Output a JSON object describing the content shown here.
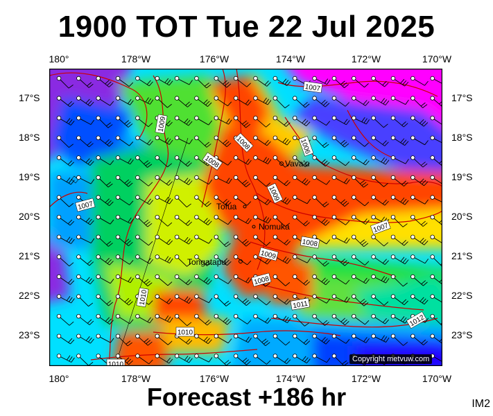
{
  "title": "1900 TOT Tue 22 Jul 2025",
  "footer": "Forecast +186 hr",
  "corner_label": "IM2",
  "copyright": "Copyright metvuw.com",
  "lon_labels": [
    "180°",
    "178°W",
    "176°W",
    "174°W",
    "172°W",
    "170°W"
  ],
  "lat_labels": [
    "17°S",
    "18°S",
    "19°S",
    "20°S",
    "21°S",
    "22°S",
    "23°S"
  ],
  "places": [
    "Vava'u",
    "Tofua",
    "Nomuka",
    "Tongatapu"
  ],
  "isobar_labels": [
    "1007",
    "1009",
    "1007",
    "1006",
    "1008",
    "1008",
    "1009",
    "1008",
    "1009",
    "1008",
    "1010",
    "1010",
    "1011",
    "1007",
    "1012",
    "1008",
    "1009",
    "1010"
  ],
  "colors": {
    "calm": "#ff00ff",
    "light": "#0000ff",
    "moderate": "#00ffff",
    "fresh": "#00ff00",
    "strong": "#ffff00",
    "gale": "#ff4400",
    "isobar": "#cc0000"
  }
}
